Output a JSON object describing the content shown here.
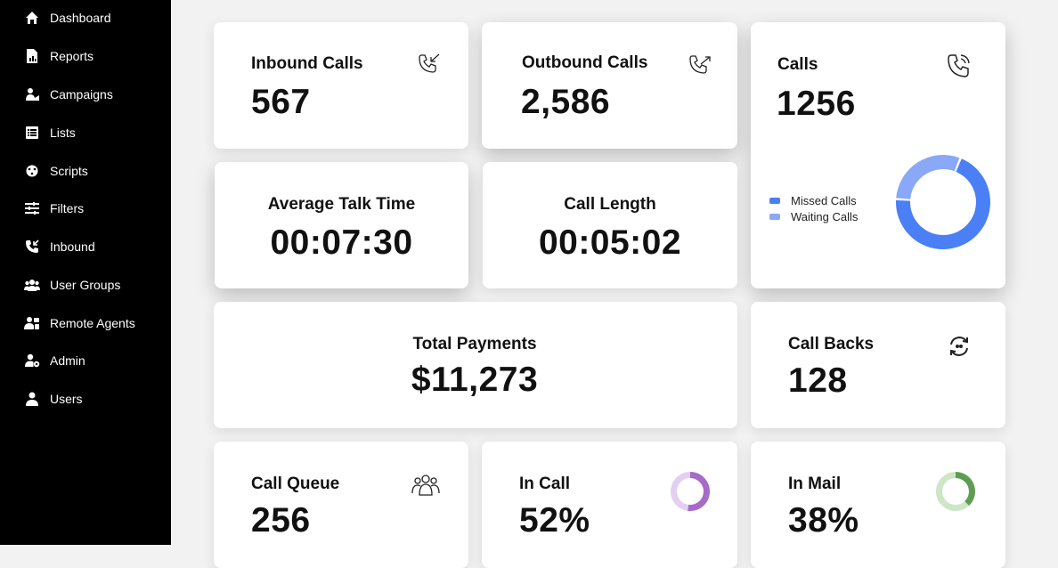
{
  "sidebar": {
    "items": [
      {
        "label": "Dashboard",
        "icon": "home-icon"
      },
      {
        "label": "Reports",
        "icon": "report-icon"
      },
      {
        "label": "Campaigns",
        "icon": "campaign-icon"
      },
      {
        "label": "Lists",
        "icon": "list-icon"
      },
      {
        "label": "Scripts",
        "icon": "script-icon"
      },
      {
        "label": "Filters",
        "icon": "filter-icon"
      },
      {
        "label": "Inbound",
        "icon": "phone-icon"
      },
      {
        "label": "User Groups",
        "icon": "user-group-icon"
      },
      {
        "label": "Remote Agents",
        "icon": "remote-agent-icon"
      },
      {
        "label": "Admin",
        "icon": "admin-icon"
      },
      {
        "label": "Users",
        "icon": "user-icon"
      }
    ]
  },
  "cards": {
    "inbound": {
      "title": "Inbound Calls",
      "value": "567",
      "icon": "phone-incoming-icon"
    },
    "outbound": {
      "title": "Outbound Calls",
      "value": "2,586",
      "icon": "phone-outgoing-icon"
    },
    "calls": {
      "title": "Calls",
      "value": "1256",
      "icon": "phone-icon",
      "legend": [
        {
          "label": "Missed Calls",
          "color": "#4a7ff5"
        },
        {
          "label": "Waiting Calls",
          "color": "#8aa8f8"
        }
      ]
    },
    "avg_talk": {
      "title": "Average Talk Time",
      "value": "00:07:30"
    },
    "call_length": {
      "title": "Call Length",
      "value": "00:05:02"
    },
    "total_payments": {
      "title": "Total Payments",
      "value": "$11,273"
    },
    "call_backs": {
      "title": "Call Backs",
      "value": "128",
      "icon": "refresh-icon"
    },
    "call_queue": {
      "title": "Call Queue",
      "value": "256",
      "icon": "user-group-icon"
    },
    "in_call": {
      "title": "In Call",
      "value": "52%",
      "percent": 52,
      "color": "#a66bc8",
      "track": "#e3cff0"
    },
    "in_mail": {
      "title": "In Mail",
      "value": "38%",
      "percent": 38,
      "color": "#5f9e52",
      "track": "#cde6c6"
    }
  },
  "chart_data": {
    "type": "pie",
    "categories": [
      "Missed Calls",
      "Waiting Calls"
    ],
    "values": [
      70,
      30
    ],
    "colors": [
      "#4a7ff5",
      "#8aa8f8"
    ]
  }
}
